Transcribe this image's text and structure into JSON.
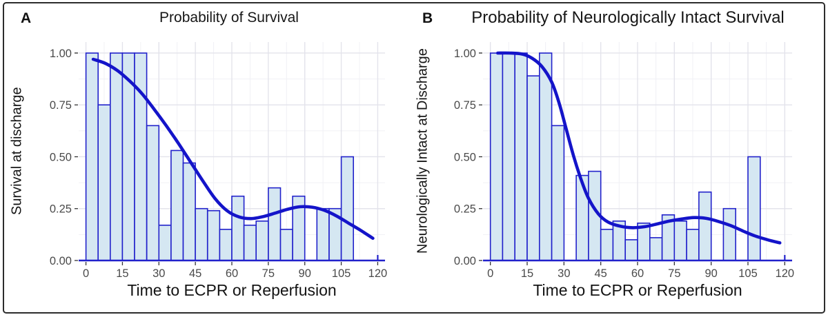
{
  "figure": {
    "border_color": "#2b2b2b",
    "background": "#ffffff"
  },
  "colors": {
    "bar_fill": "#d5e7f2",
    "bar_stroke": "#2121cb",
    "curve": "#1414c9",
    "baseline": "#2121cb",
    "grid_major": "#e3e3eb",
    "grid_minor": "#f0f0f5",
    "tick_mark": "#333333",
    "tick_label": "#4a4a4a",
    "text": "#131313"
  },
  "chart_data": [
    {
      "type": "bar",
      "panel_label": "A",
      "title": "Probability of Survival",
      "xlabel": "Time to ECPR or Reperfusion",
      "ylabel": "Survival at discharge",
      "bin_width": 5,
      "bin_starts": [
        0,
        5,
        10,
        15,
        20,
        25,
        30,
        35,
        40,
        45,
        50,
        55,
        60,
        65,
        70,
        75,
        80,
        85,
        90,
        95,
        100,
        105
      ],
      "values": [
        1.0,
        0.75,
        1.0,
        1.0,
        1.0,
        0.65,
        0.17,
        0.53,
        0.47,
        0.25,
        0.24,
        0.15,
        0.31,
        0.17,
        0.19,
        0.35,
        0.15,
        0.31,
        null,
        0.25,
        0.25,
        0.5
      ],
      "smooth_curve": [
        [
          3,
          0.97
        ],
        [
          8,
          0.95
        ],
        [
          13,
          0.915
        ],
        [
          18,
          0.865
        ],
        [
          23,
          0.805
        ],
        [
          28,
          0.73
        ],
        [
          33,
          0.65
        ],
        [
          38,
          0.565
        ],
        [
          43,
          0.475
        ],
        [
          48,
          0.385
        ],
        [
          53,
          0.3
        ],
        [
          58,
          0.24
        ],
        [
          63,
          0.21
        ],
        [
          68,
          0.202
        ],
        [
          73,
          0.212
        ],
        [
          78,
          0.229
        ],
        [
          83,
          0.247
        ],
        [
          88,
          0.259
        ],
        [
          93,
          0.257
        ],
        [
          98,
          0.242
        ],
        [
          103,
          0.215
        ],
        [
          108,
          0.18
        ],
        [
          113,
          0.145
        ],
        [
          118,
          0.107
        ]
      ],
      "xticks": [
        0,
        15,
        30,
        45,
        60,
        75,
        90,
        105,
        120
      ],
      "xtick_labels": [
        "0",
        "15",
        "30",
        "45",
        "60",
        "75",
        "90",
        "105",
        "120"
      ],
      "yticks": [
        0,
        0.25,
        0.5,
        0.75,
        1
      ],
      "ytick_labels": [
        "0.00",
        "0.25",
        "0.50",
        "0.75",
        "1.00"
      ],
      "xlim": [
        0,
        120
      ],
      "ylim": [
        0,
        1
      ],
      "grid": "major and minor, light gray",
      "legend": false
    },
    {
      "type": "bar",
      "panel_label": "B",
      "title": "Probability of Neurologically Intact Survival",
      "xlabel": "Time to ECPR or Reperfusion",
      "ylabel": "Neurologically Intact at Discharge",
      "bin_width": 5,
      "bin_starts": [
        0,
        5,
        10,
        15,
        20,
        25,
        30,
        35,
        40,
        45,
        50,
        55,
        60,
        65,
        70,
        75,
        80,
        85,
        90,
        95,
        100,
        105
      ],
      "values": [
        1.0,
        1.0,
        1.0,
        0.89,
        1.0,
        0.65,
        null,
        0.41,
        0.43,
        0.15,
        0.19,
        0.1,
        0.18,
        0.11,
        0.22,
        0.19,
        0.15,
        0.33,
        null,
        0.25,
        null,
        0.5
      ],
      "smooth_curve": [
        [
          3,
          1.0
        ],
        [
          8,
          1.0
        ],
        [
          13,
          0.995
        ],
        [
          17,
          0.975
        ],
        [
          21,
          0.935
        ],
        [
          25,
          0.86
        ],
        [
          28,
          0.76
        ],
        [
          31,
          0.63
        ],
        [
          34,
          0.5
        ],
        [
          37,
          0.39
        ],
        [
          40,
          0.3
        ],
        [
          44,
          0.225
        ],
        [
          48,
          0.185
        ],
        [
          53,
          0.165
        ],
        [
          58,
          0.158
        ],
        [
          63,
          0.163
        ],
        [
          68,
          0.176
        ],
        [
          73,
          0.19
        ],
        [
          78,
          0.2
        ],
        [
          83,
          0.207
        ],
        [
          88,
          0.203
        ],
        [
          93,
          0.188
        ],
        [
          98,
          0.168
        ],
        [
          103,
          0.142
        ],
        [
          108,
          0.118
        ],
        [
          113,
          0.1
        ],
        [
          118,
          0.085
        ]
      ],
      "xticks": [
        0,
        15,
        30,
        45,
        60,
        75,
        90,
        105,
        120
      ],
      "xtick_labels": [
        "0",
        "15",
        "30",
        "45",
        "60",
        "75",
        "90",
        "105",
        "120"
      ],
      "yticks": [
        0,
        0.25,
        0.5,
        0.75,
        1
      ],
      "ytick_labels": [
        "0.00",
        "0.25",
        "0.50",
        "0.75",
        "1.00"
      ],
      "xlim": [
        0,
        120
      ],
      "ylim": [
        0,
        1
      ],
      "grid": "major and minor, light gray",
      "legend": false
    }
  ]
}
